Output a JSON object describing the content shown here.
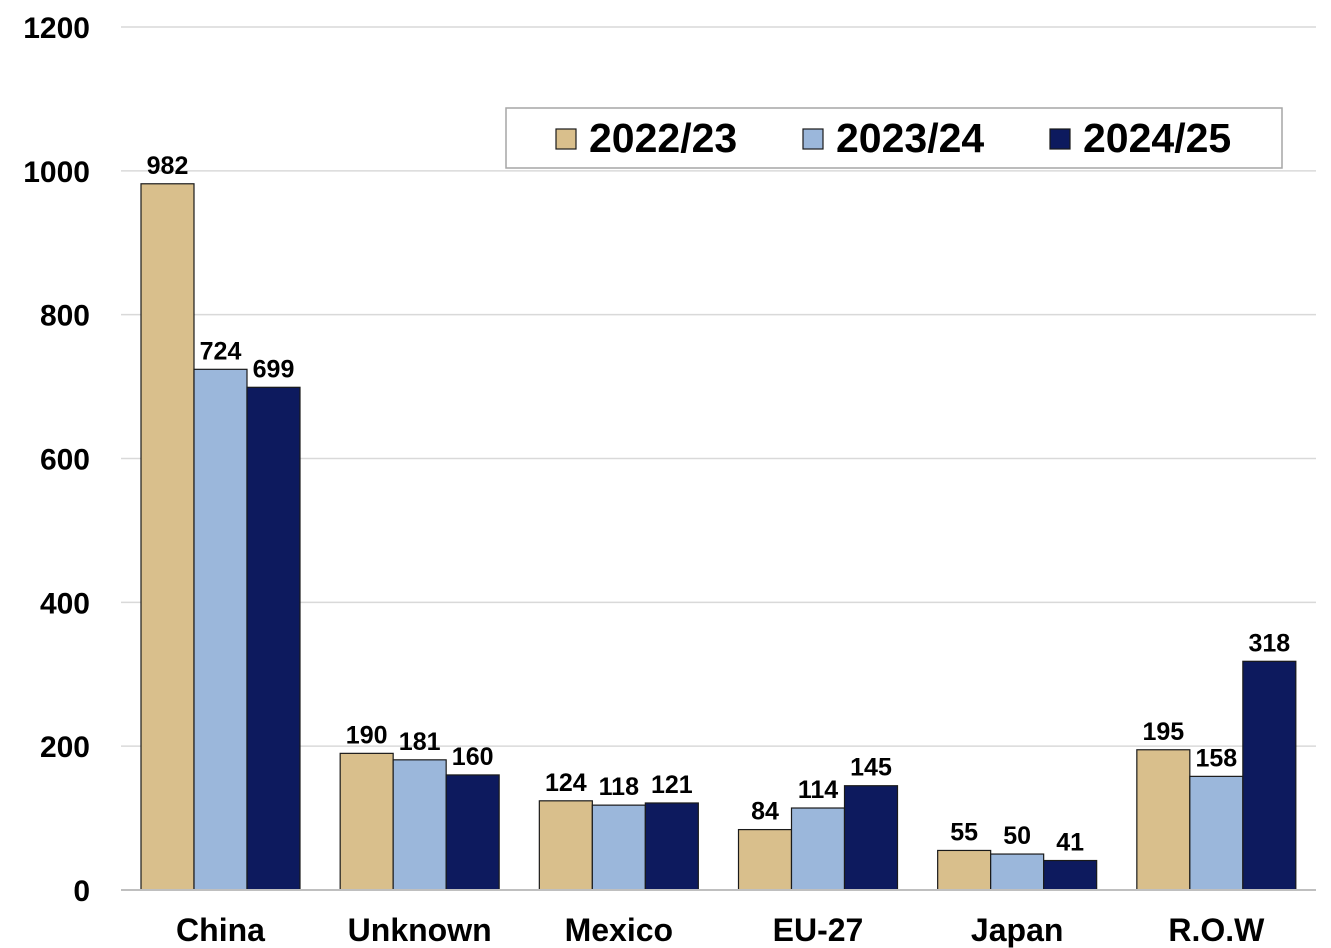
{
  "chart_data": {
    "type": "bar",
    "title": "",
    "xlabel": "",
    "ylabel": "",
    "ylim": [
      0,
      1200
    ],
    "yticks": [
      0,
      200,
      400,
      600,
      800,
      1000,
      1200
    ],
    "grid": true,
    "legend_position": "top-right",
    "categories": [
      "China",
      "Unknown",
      "Mexico",
      "EU-27",
      "Japan",
      "R.O.W"
    ],
    "series": [
      {
        "name": "2022/23",
        "color": "#D9BF8C",
        "values": [
          982,
          190,
          124,
          84,
          55,
          195
        ]
      },
      {
        "name": "2023/24",
        "color": "#9BB7DB",
        "values": [
          724,
          181,
          118,
          114,
          50,
          158
        ]
      },
      {
        "name": "2024/25",
        "color": "#0D1A5E",
        "values": [
          699,
          160,
          121,
          145,
          41,
          318
        ]
      }
    ]
  }
}
